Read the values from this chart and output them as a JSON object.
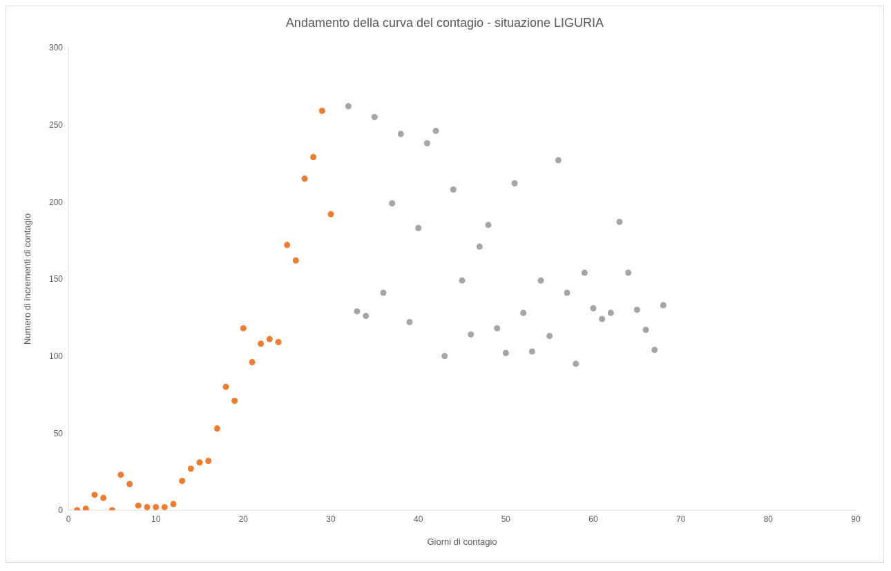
{
  "chart_data": {
    "type": "scatter",
    "title": "Andamento della curva del contagio - situazione LIGURIA",
    "xlabel": "Giorni di contagio",
    "ylabel": "Numero di incrementi di contagio",
    "xlim": [
      0,
      90
    ],
    "xticks": [
      0,
      10,
      20,
      30,
      40,
      50,
      60,
      70,
      80,
      90
    ],
    "ylim": [
      0,
      300
    ],
    "yticks": [
      0,
      50,
      100,
      150,
      200,
      250,
      300
    ],
    "grid": false,
    "marker": "circle",
    "series": [
      {
        "color": "#ed7d31",
        "x": [
          1,
          2,
          3,
          4,
          5,
          6,
          7,
          8,
          9,
          10,
          11,
          12,
          13,
          14,
          15,
          16,
          17,
          18,
          19,
          20,
          21,
          22,
          23,
          24,
          25,
          26,
          27,
          28,
          29,
          30
        ],
        "values": [
          0,
          1,
          10,
          8,
          0,
          23,
          17,
          3,
          2,
          2,
          2,
          4,
          19,
          27,
          31,
          32,
          53,
          80,
          71,
          118,
          96,
          108,
          111,
          109,
          172,
          162,
          215,
          229,
          259,
          192
        ]
      },
      {
        "color": "#a5a5a5",
        "x": [
          32,
          33,
          34,
          35,
          36,
          37,
          38,
          39,
          40,
          41,
          42,
          43,
          44,
          45,
          46,
          47,
          48,
          49,
          50,
          51,
          52,
          53,
          54,
          55,
          56,
          57,
          58,
          59,
          60,
          61,
          62,
          63,
          64,
          65,
          66,
          67,
          68
        ],
        "values": [
          262,
          129,
          126,
          255,
          141,
          199,
          244,
          122,
          183,
          238,
          246,
          100,
          208,
          149,
          114,
          171,
          185,
          118,
          102,
          212,
          128,
          103,
          149,
          113,
          227,
          141,
          95,
          154,
          131,
          124,
          128,
          187,
          154,
          130,
          117,
          104,
          133
        ]
      }
    ]
  }
}
